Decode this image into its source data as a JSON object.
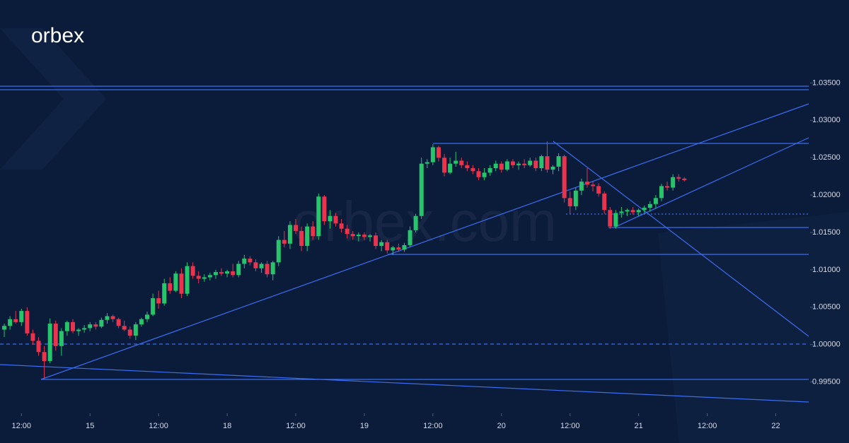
{
  "logo": "orbex",
  "watermark": "orbex.com",
  "chart_data": {
    "type": "candlestick",
    "ohlc": [
      [
        1.002,
        1.0028,
        1.001,
        1.0025
      ],
      [
        1.0025,
        1.0038,
        1.002,
        1.0034
      ],
      [
        1.0034,
        1.0045,
        1.0028,
        1.003
      ],
      [
        1.003,
        1.0048,
        1.0025,
        1.0045
      ],
      [
        1.0045,
        1.005,
        1.0012,
        1.0015
      ],
      [
        1.0015,
        1.002,
        1.0,
        1.0005
      ],
      [
        1.0005,
        1.001,
        0.9985,
        0.999
      ],
      [
        0.999,
        0.9998,
        0.9955,
        0.9978
      ],
      [
        0.9978,
        1.0035,
        0.9975,
        1.0028
      ],
      [
        1.0028,
        1.0032,
        0.9992,
        0.9998
      ],
      [
        0.9998,
        1.0022,
        0.9985,
        1.0018
      ],
      [
        1.0018,
        1.0032,
        1.0012,
        1.003
      ],
      [
        1.003,
        1.0034,
        1.0015,
        1.0018
      ],
      [
        1.0018,
        1.0022,
        1.0012,
        1.002
      ],
      [
        1.002,
        1.0026,
        1.0016,
        1.0022
      ],
      [
        1.0022,
        1.003,
        1.0018,
        1.0027
      ],
      [
        1.0027,
        1.003,
        1.002,
        1.0024
      ],
      [
        1.0024,
        1.0036,
        1.0022,
        1.0033
      ],
      [
        1.0033,
        1.0042,
        1.0028,
        1.0038
      ],
      [
        1.0038,
        1.004,
        1.003,
        1.0034
      ],
      [
        1.0034,
        1.0036,
        1.0022,
        1.0025
      ],
      [
        1.0025,
        1.0032,
        1.0018,
        1.002
      ],
      [
        1.002,
        1.0024,
        1.0008,
        1.0012
      ],
      [
        1.0012,
        1.003,
        1.0006,
        1.0027
      ],
      [
        1.0027,
        1.0036,
        1.0024,
        1.0034
      ],
      [
        1.0034,
        1.0044,
        1.003,
        1.004
      ],
      [
        1.004,
        1.0068,
        1.0038,
        1.0062
      ],
      [
        1.0062,
        1.0072,
        1.0048,
        1.0055
      ],
      [
        1.0055,
        1.0088,
        1.0052,
        1.0082
      ],
      [
        1.0082,
        1.009,
        1.0068,
        1.0072
      ],
      [
        1.0072,
        1.0098,
        1.007,
        1.0095
      ],
      [
        1.0095,
        1.0102,
        1.0062,
        1.0068
      ],
      [
        1.0068,
        1.011,
        1.0065,
        1.0105
      ],
      [
        1.0105,
        1.011,
        1.0088,
        1.0092
      ],
      [
        1.0092,
        1.0098,
        1.0082,
        1.0088
      ],
      [
        1.0088,
        1.0094,
        1.0084,
        1.009
      ],
      [
        1.009,
        1.0096,
        1.0086,
        1.0093
      ],
      [
        1.0093,
        1.01,
        1.0088,
        1.0097
      ],
      [
        1.0097,
        1.0102,
        1.0092,
        1.0095
      ],
      [
        1.0095,
        1.01,
        1.009,
        1.0098
      ],
      [
        1.0098,
        1.0108,
        1.009,
        1.0093
      ],
      [
        1.0093,
        1.0112,
        1.009,
        1.0108
      ],
      [
        1.0108,
        1.012,
        1.0102,
        1.0115
      ],
      [
        1.0115,
        1.0118,
        1.0106,
        1.011
      ],
      [
        1.011,
        1.0114,
        1.0098,
        1.0102
      ],
      [
        1.0102,
        1.011,
        1.0096,
        1.0108
      ],
      [
        1.0108,
        1.0112,
        1.009,
        1.0094
      ],
      [
        1.0094,
        1.0112,
        1.0086,
        1.011
      ],
      [
        1.011,
        1.0145,
        1.0105,
        1.014
      ],
      [
        1.014,
        1.0152,
        1.013,
        1.0135
      ],
      [
        1.0135,
        1.0165,
        1.0128,
        1.016
      ],
      [
        1.016,
        1.0168,
        1.0148,
        1.0152
      ],
      [
        1.0152,
        1.0158,
        1.0125,
        1.0132
      ],
      [
        1.0132,
        1.0162,
        1.0125,
        1.0158
      ],
      [
        1.0158,
        1.0165,
        1.014,
        1.0145
      ],
      [
        1.0145,
        1.0202,
        1.014,
        1.0198
      ],
      [
        1.0198,
        1.02,
        1.016,
        1.0165
      ],
      [
        1.0165,
        1.018,
        1.0155,
        1.0172
      ],
      [
        1.0172,
        1.0176,
        1.0158,
        1.0162
      ],
      [
        1.0162,
        1.0168,
        1.015,
        1.0155
      ],
      [
        1.0155,
        1.016,
        1.0142,
        1.0148
      ],
      [
        1.0148,
        1.0152,
        1.014,
        1.0145
      ],
      [
        1.0145,
        1.015,
        1.0138,
        1.0147
      ],
      [
        1.0147,
        1.015,
        1.014,
        1.0144
      ],
      [
        1.0144,
        1.0148,
        1.0138,
        1.0146
      ],
      [
        1.0146,
        1.015,
        1.0128,
        1.0132
      ],
      [
        1.0132,
        1.014,
        1.0125,
        1.0137
      ],
      [
        1.0137,
        1.014,
        1.0122,
        1.0126
      ],
      [
        1.0126,
        1.0132,
        1.012,
        1.013
      ],
      [
        1.013,
        1.0135,
        1.0124,
        1.0127
      ],
      [
        1.0127,
        1.0136,
        1.0124,
        1.0133
      ],
      [
        1.0133,
        1.0158,
        1.013,
        1.0153
      ],
      [
        1.0153,
        1.0175,
        1.015,
        1.0172
      ],
      [
        1.0172,
        1.025,
        1.0168,
        1.0242
      ],
      [
        1.0242,
        1.0248,
        1.0236,
        1.0244
      ],
      [
        1.0244,
        1.0268,
        1.024,
        1.0264
      ],
      [
        1.0264,
        1.0266,
        1.0245,
        1.025
      ],
      [
        1.025,
        1.0255,
        1.0225,
        1.023
      ],
      [
        1.023,
        1.025,
        1.0228,
        1.0242
      ],
      [
        1.0242,
        1.0258,
        1.0238,
        1.0246
      ],
      [
        1.0246,
        1.025,
        1.0236,
        1.024
      ],
      [
        1.024,
        1.0245,
        1.0232,
        1.0236
      ],
      [
        1.0236,
        1.024,
        1.0228,
        1.0232
      ],
      [
        1.0232,
        1.0236,
        1.022,
        1.0224
      ],
      [
        1.0224,
        1.0236,
        1.022,
        1.023
      ],
      [
        1.023,
        1.024,
        1.0226,
        1.0236
      ],
      [
        1.0236,
        1.0246,
        1.0232,
        1.0242
      ],
      [
        1.0242,
        1.0245,
        1.023,
        1.0234
      ],
      [
        1.0234,
        1.0248,
        1.0232,
        1.0245
      ],
      [
        1.0245,
        1.0248,
        1.0236,
        1.024
      ],
      [
        1.024,
        1.0245,
        1.0234,
        1.0242
      ],
      [
        1.0242,
        1.0248,
        1.0236,
        1.024
      ],
      [
        1.024,
        1.025,
        1.0238,
        1.0246
      ],
      [
        1.0246,
        1.025,
        1.0232,
        1.0236
      ],
      [
        1.0236,
        1.0254,
        1.0232,
        1.0252
      ],
      [
        1.0252,
        1.0272,
        1.023,
        1.0234
      ],
      [
        1.0234,
        1.024,
        1.0228,
        1.0238
      ],
      [
        1.0238,
        1.0256,
        1.0232,
        1.0252
      ],
      [
        1.0252,
        1.0254,
        1.019,
        1.0196
      ],
      [
        1.0196,
        1.0205,
        1.0175,
        1.0185
      ],
      [
        1.0185,
        1.021,
        1.018,
        1.0206
      ],
      [
        1.0206,
        1.0222,
        1.02,
        1.0218
      ],
      [
        1.0218,
        1.0236,
        1.021,
        1.0214
      ],
      [
        1.0214,
        1.0218,
        1.0205,
        1.0212
      ],
      [
        1.0212,
        1.0216,
        1.0198,
        1.0202
      ],
      [
        1.0202,
        1.0205,
        1.0175,
        1.018
      ],
      [
        1.018,
        1.0184,
        1.0155,
        1.0158
      ],
      [
        1.0158,
        1.018,
        1.0155,
        1.0176
      ],
      [
        1.0176,
        1.0184,
        1.017,
        1.0178
      ],
      [
        1.0178,
        1.0182,
        1.0172,
        1.018
      ],
      [
        1.018,
        1.0184,
        1.0174,
        1.0177
      ],
      [
        1.0177,
        1.0182,
        1.0172,
        1.018
      ],
      [
        1.018,
        1.0186,
        1.0176,
        1.0183
      ],
      [
        1.0183,
        1.0192,
        1.0178,
        1.0188
      ],
      [
        1.0188,
        1.02,
        1.0182,
        1.0196
      ],
      [
        1.0196,
        1.0215,
        1.0192,
        1.0212
      ],
      [
        1.0212,
        1.0218,
        1.0206,
        1.021
      ],
      [
        1.021,
        1.0228,
        1.0206,
        1.0224
      ],
      [
        1.0224,
        1.0228,
        1.0218,
        1.0222
      ],
      [
        1.0222,
        1.0224,
        1.0218,
        1.022
      ]
    ],
    "up_color": "#27c46c",
    "down_color": "#e8344c",
    "xlim": [
      -0.75,
      141
    ],
    "xticks": [
      {
        "value": 3,
        "label": "12:00"
      },
      {
        "value": 15,
        "label": "15"
      },
      {
        "value": 27,
        "label": "12:00"
      },
      {
        "value": 39,
        "label": "18"
      },
      {
        "value": 51,
        "label": "12:00"
      },
      {
        "value": 63,
        "label": "19"
      },
      {
        "value": 75,
        "label": "12:00"
      },
      {
        "value": 87,
        "label": "20"
      },
      {
        "value": 99,
        "label": "12:00"
      },
      {
        "value": 111,
        "label": "21"
      },
      {
        "value": 123,
        "label": "12:00"
      },
      {
        "value": 135,
        "label": "22"
      }
    ],
    "ylim": [
      0.9908,
      1.0461
    ],
    "yticks": [
      {
        "value": 0.995,
        "label": "0.99500"
      },
      {
        "value": 1.0,
        "label": "1.00000"
      },
      {
        "value": 1.005,
        "label": "1.00500"
      },
      {
        "value": 1.01,
        "label": "1.01000"
      },
      {
        "value": 1.015,
        "label": "1.01500"
      },
      {
        "value": 1.02,
        "label": "1.02000"
      },
      {
        "value": 1.025,
        "label": "1.02500"
      },
      {
        "value": 1.03,
        "label": "1.03000"
      },
      {
        "value": 1.035,
        "label": "1.03500"
      }
    ]
  }
}
